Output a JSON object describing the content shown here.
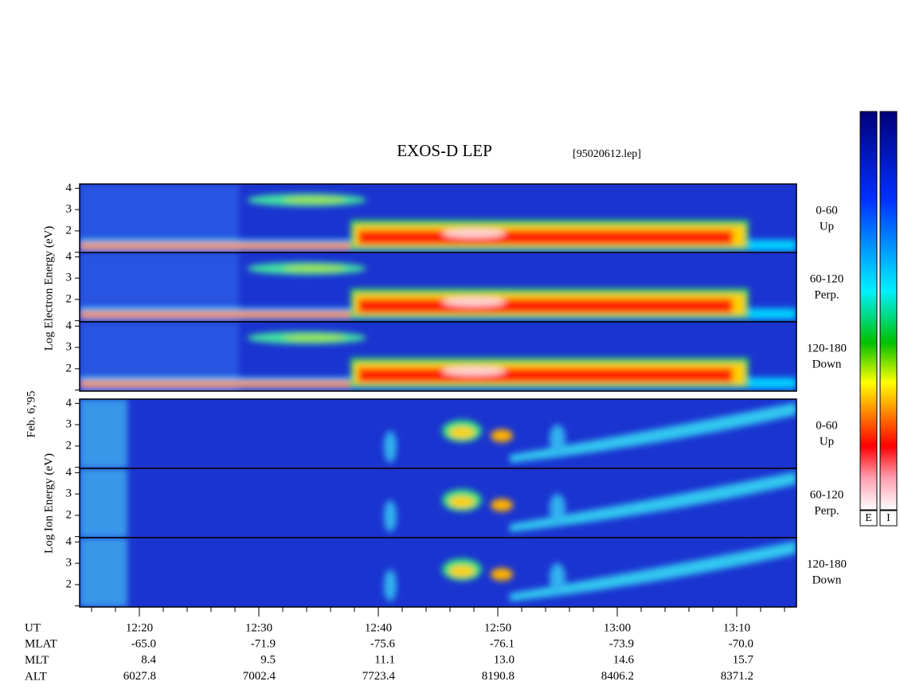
{
  "chart_data": {
    "type": "spectrogram",
    "title": "EXOS-D LEP",
    "file_label": "[95020612.lep]",
    "date_label": "Feb. 6,'95",
    "electron_axis_label": "Log Electron Energy (eV)",
    "ion_axis_label": "Log Ion Energy (eV)",
    "panels": [
      {
        "species": "electron",
        "angle": "0-60",
        "direction": "Up"
      },
      {
        "species": "electron",
        "angle": "60-120",
        "direction": "Perp."
      },
      {
        "species": "electron",
        "angle": "120-180",
        "direction": "Down"
      },
      {
        "species": "ion",
        "angle": "0-60",
        "direction": "Up"
      },
      {
        "species": "ion",
        "angle": "60-120",
        "direction": "Perp."
      },
      {
        "species": "ion",
        "angle": "120-180",
        "direction": "Down"
      }
    ],
    "ylim": [
      0.95,
      4.2
    ],
    "yticks": [
      2,
      3,
      4
    ],
    "y_unlabeled_ticks": [
      1
    ],
    "xlim": [
      735,
      795
    ],
    "xticks": [
      {
        "value": 740,
        "label": "12:20"
      },
      {
        "value": 750,
        "label": "12:30"
      },
      {
        "value": 760,
        "label": "12:40"
      },
      {
        "value": 770,
        "label": "12:50"
      },
      {
        "value": 780,
        "label": "13:00"
      },
      {
        "value": 790,
        "label": "13:10"
      }
    ],
    "x_minor_ticks": [
      736,
      738,
      742,
      744,
      746,
      748,
      752,
      754,
      756,
      758,
      762,
      764,
      766,
      768,
      772,
      774,
      776,
      778,
      782,
      784,
      786,
      788,
      792,
      794
    ],
    "orbit": {
      "labels": [
        "UT",
        "MLAT",
        "MLT",
        "ALT"
      ],
      "rows": [
        [
          "-65.0",
          "-71.9",
          "-75.6",
          "-76.1",
          "-73.9",
          "-70.0"
        ],
        [
          "8.4",
          "9.5",
          "11.1",
          "13.0",
          "14.6",
          "15.7"
        ],
        [
          "6027.8",
          "7002.4",
          "7723.4",
          "8190.8",
          "8406.2",
          "8371.2"
        ]
      ]
    },
    "colorbars": [
      "E",
      "I"
    ]
  }
}
